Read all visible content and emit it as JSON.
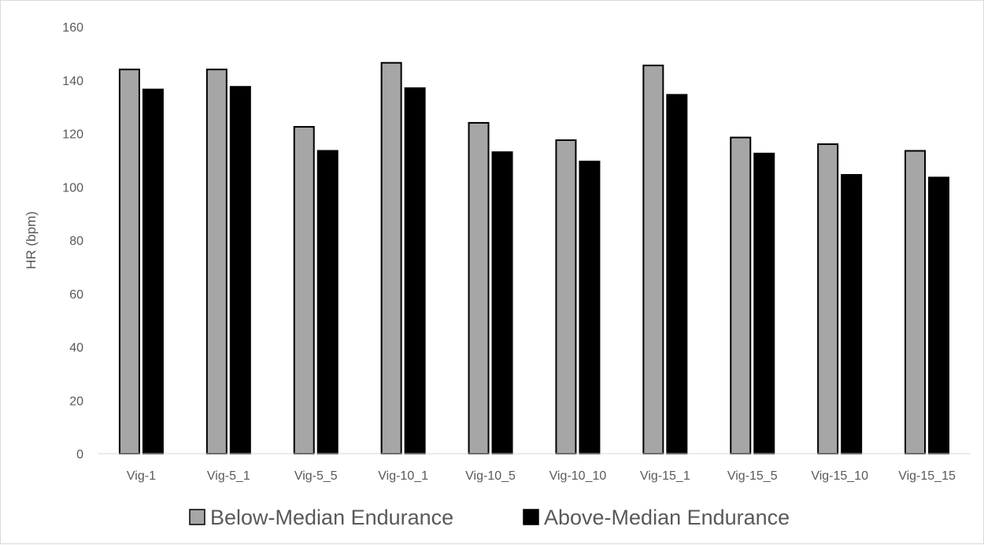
{
  "chart_data": {
    "type": "bar",
    "title": "",
    "xlabel": "",
    "ylabel": "HR (bpm)",
    "ylim": [
      0,
      160
    ],
    "yticks": [
      0,
      20,
      40,
      60,
      80,
      100,
      120,
      140,
      160
    ],
    "grid": false,
    "legend_position": "bottom",
    "categories": [
      "Vig-1",
      "Vig-5_1",
      "Vig-5_5",
      "Vig-10_1",
      "Vig-10_5",
      "Vig-10_10",
      "Vig-15_1",
      "Vig-15_5",
      "Vig-15_10",
      "Vig-15_15"
    ],
    "series": [
      {
        "name": "Below-Median Endurance",
        "color": "#a6a6a6",
        "values": [
          144,
          144,
          122.5,
          146.5,
          124,
          117.5,
          145.5,
          118.5,
          116,
          113.5
        ]
      },
      {
        "name": "Above-Median Endurance",
        "color": "#000000",
        "values": [
          136.5,
          137.5,
          113.5,
          137,
          113,
          109.5,
          134.5,
          112.5,
          104.5,
          103.5
        ]
      }
    ]
  }
}
